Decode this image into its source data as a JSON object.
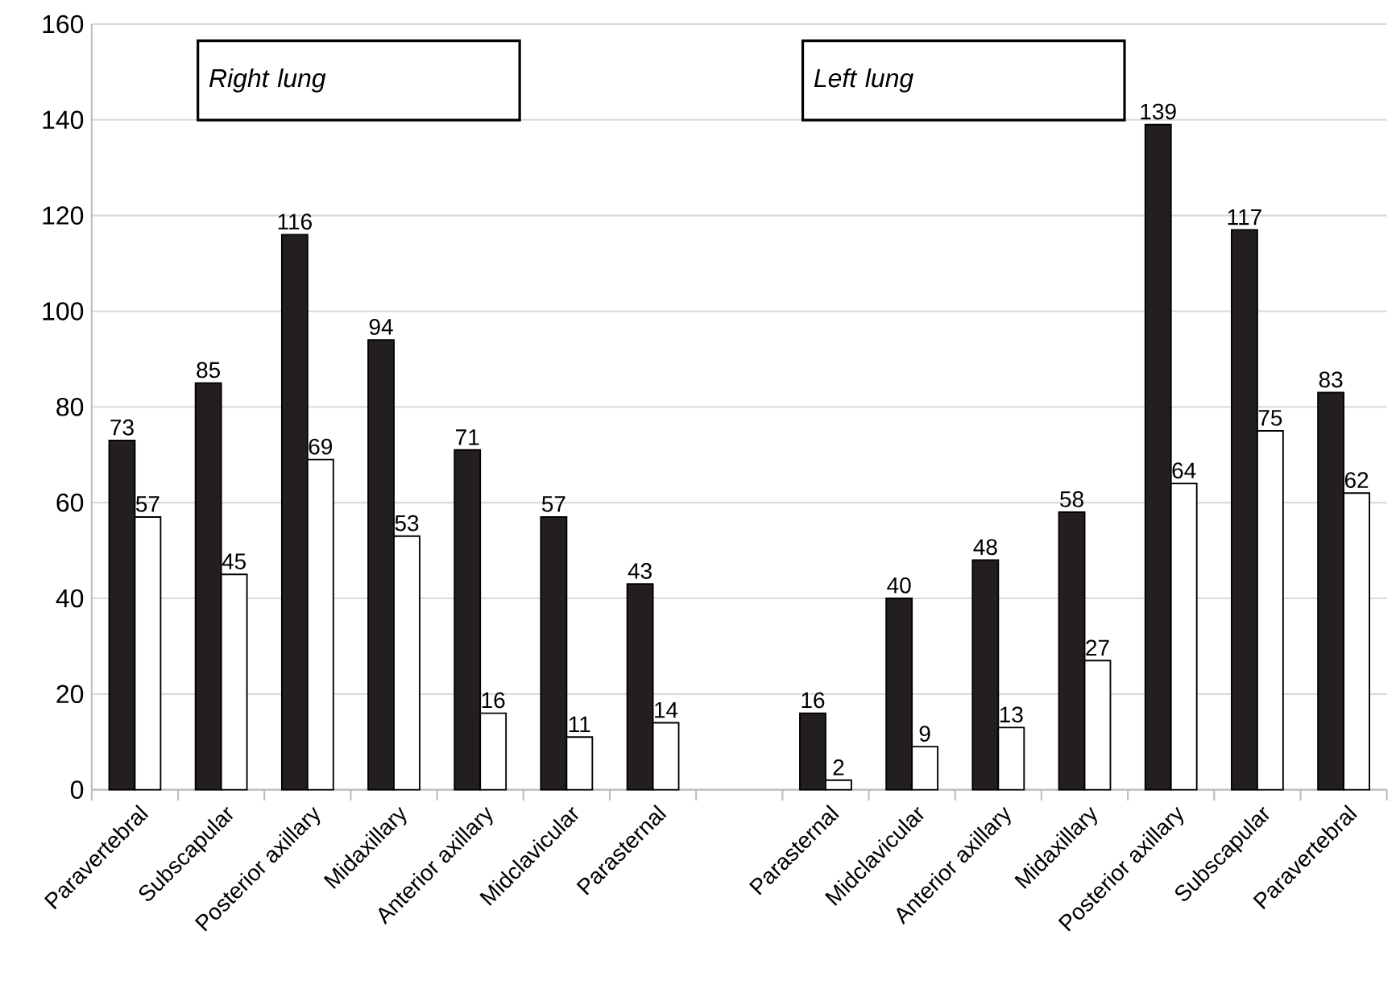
{
  "chart_data": {
    "type": "bar",
    "categories": [
      "Paravertebral",
      "Subscapular",
      "Posterior axillary",
      "Midaxillary",
      "Anterior axillary",
      "Midclavicular",
      "Parasternal",
      null,
      "Parasternal",
      "Midclavicular",
      "Anterior axillary",
      "Midaxillary",
      "Posterior axillary",
      "Subscapular",
      "Paravertebral"
    ],
    "series": [
      {
        "color": "#231f20",
        "values": [
          73,
          85,
          116,
          94,
          71,
          57,
          43,
          null,
          16,
          40,
          48,
          58,
          139,
          117,
          83
        ]
      },
      {
        "color": "#ffffff",
        "values": [
          57,
          45,
          69,
          53,
          16,
          11,
          14,
          null,
          2,
          9,
          13,
          27,
          64,
          75,
          62
        ]
      }
    ],
    "ylim": [
      0,
      160
    ],
    "yticks": [
      0,
      20,
      40,
      60,
      80,
      100,
      120,
      140,
      160
    ],
    "grid": "y",
    "data_labels": true,
    "annotations": [
      "Right lung",
      "Left lung"
    ]
  }
}
